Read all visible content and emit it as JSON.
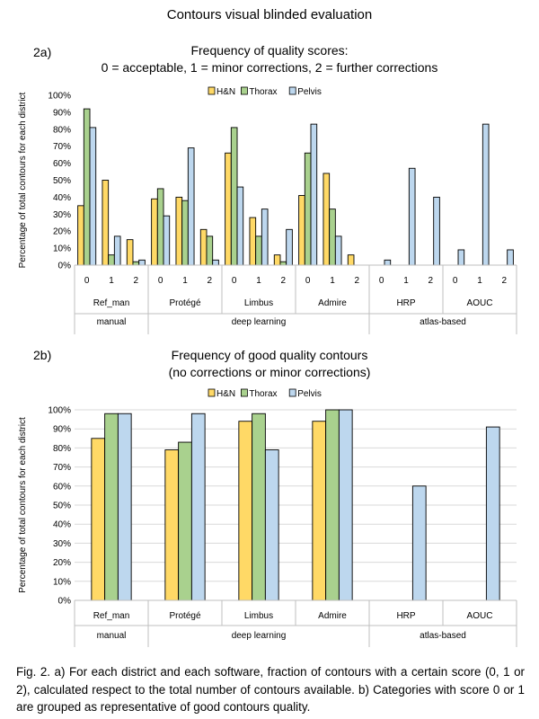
{
  "page_title": "Contours visual blinded evaluation",
  "caption": "Fig. 2. a) For each district and each software, fraction of contours with a certain score (0, 1 or 2), calculated respect to the total number of contours available. b) Categories with score 0 or 1 are grouped as representative of good contours quality.",
  "colors": {
    "H&N": "#ffd966",
    "Thorax": "#a9d18e",
    "Pelvis": "#bdd7ee",
    "bar_outline": "#000000",
    "grid": "#d9d9d9"
  },
  "chart_data": [
    {
      "id": "2a",
      "panel_label": "2a)",
      "type": "bar",
      "title": "Frequency of quality scores:",
      "subtitle": "0 = acceptable, 1 = minor corrections, 2 = further corrections",
      "ylabel": "Percentage of total contours for each district",
      "ylim": [
        0,
        100
      ],
      "yticks": [
        "0%",
        "10%",
        "20%",
        "30%",
        "40%",
        "50%",
        "60%",
        "70%",
        "80%",
        "90%",
        "100%"
      ],
      "legend_position": "top-center",
      "grid": false,
      "legend": [
        "H&N",
        "Thorax",
        "Pelvis"
      ],
      "categories": [
        "0",
        "1",
        "2",
        "0",
        "1",
        "2",
        "0",
        "1",
        "2",
        "0",
        "1",
        "2",
        "0",
        "1",
        "2",
        "0",
        "1",
        "2"
      ],
      "software": [
        "Ref_man",
        "Protégé",
        "Limbus",
        "Admire",
        "HRP",
        "AOUC"
      ],
      "groups": [
        {
          "label": "manual",
          "span": 1
        },
        {
          "label": "deep learning",
          "span": 3
        },
        {
          "label": "atlas-based",
          "span": 2
        }
      ],
      "series": [
        {
          "name": "H&N",
          "values": [
            35,
            50,
            15,
            39,
            40,
            21,
            66,
            28,
            6,
            41,
            54,
            6,
            null,
            null,
            null,
            null,
            null,
            null
          ]
        },
        {
          "name": "Thorax",
          "values": [
            92,
            6,
            2,
            45,
            38,
            17,
            81,
            17,
            2,
            66,
            33,
            null,
            null,
            null,
            null,
            null,
            null,
            null
          ]
        },
        {
          "name": "Pelvis",
          "values": [
            81,
            17,
            3,
            29,
            69,
            3,
            46,
            33,
            21,
            83,
            17,
            null,
            3,
            57,
            40,
            9,
            83,
            9
          ]
        }
      ]
    },
    {
      "id": "2b",
      "panel_label": "2b)",
      "type": "bar",
      "title": "Frequency of good quality contours",
      "subtitle": "(no corrections or minor corrections)",
      "ylabel": "Percentage of total contours for each district",
      "ylim": [
        0,
        100
      ],
      "yticks": [
        "0%",
        "10%",
        "20%",
        "30%",
        "40%",
        "50%",
        "60%",
        "70%",
        "80%",
        "90%",
        "100%"
      ],
      "legend_position": "top-right",
      "grid": true,
      "legend": [
        "H&N",
        "Thorax",
        "Pelvis"
      ],
      "categories": [
        "Ref_man",
        "Protégé",
        "Limbus",
        "Admire",
        "HRP",
        "AOUC"
      ],
      "groups": [
        {
          "label": "manual",
          "span": 1
        },
        {
          "label": "deep learning",
          "span": 3
        },
        {
          "label": "atlas-based",
          "span": 2
        }
      ],
      "series": [
        {
          "name": "H&N",
          "values": [
            85,
            79,
            94,
            94,
            null,
            null
          ]
        },
        {
          "name": "Thorax",
          "values": [
            98,
            83,
            98,
            100,
            null,
            null
          ]
        },
        {
          "name": "Pelvis",
          "values": [
            98,
            98,
            79,
            100,
            60,
            91
          ]
        }
      ]
    }
  ]
}
